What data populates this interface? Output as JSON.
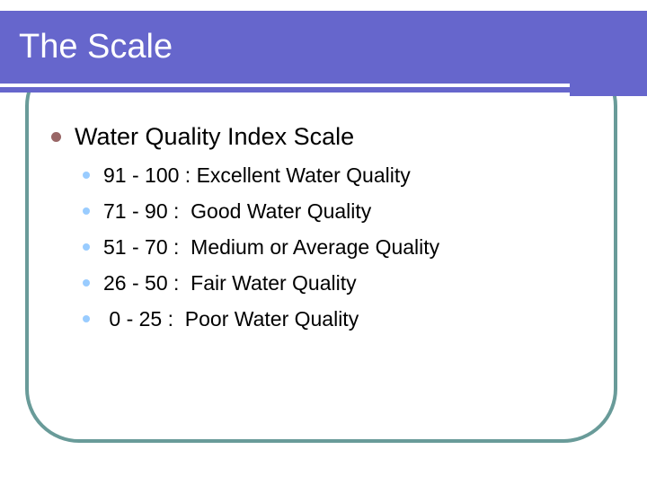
{
  "slide": {
    "title": "The Scale",
    "content": {
      "heading": "Water Quality Index Scale",
      "items": [
        "91 - 100 : Excellent Water Quality",
        "71 - 90 :  Good Water Quality",
        "51 - 70 :  Medium or Average Quality",
        "26 - 50 :  Fair Water Quality",
        " 0 - 25 :  Poor Water Quality"
      ]
    },
    "colors": {
      "band_purple": "#6666cc",
      "border_teal": "#699b99",
      "bullet_level1": "#996666",
      "bullet_level2": "#99ccff",
      "title_text": "#ffffff",
      "body_text": "#000000"
    }
  }
}
